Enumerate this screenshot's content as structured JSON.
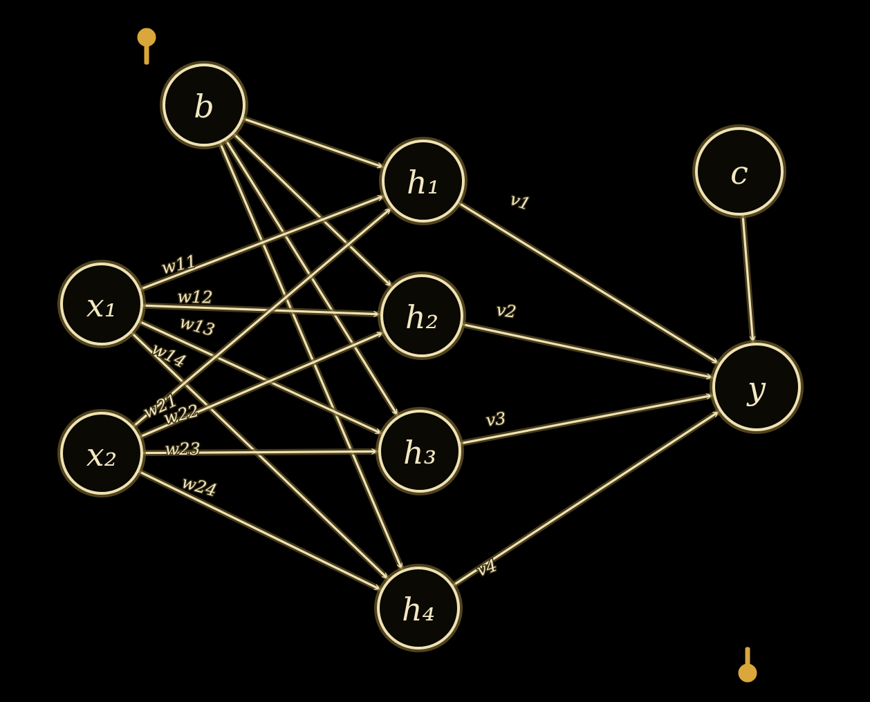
{
  "colors": {
    "background": "#000000",
    "ink": "#efe3b4",
    "halo": "#6b5a2a",
    "handle": "#d9a73a"
  },
  "nodes": [
    {
      "id": "b",
      "label": "b"
    },
    {
      "id": "x1",
      "label": "x₁"
    },
    {
      "id": "x2",
      "label": "x₂"
    },
    {
      "id": "h1",
      "label": "h₁"
    },
    {
      "id": "h2",
      "label": "h₂"
    },
    {
      "id": "h3",
      "label": "h₃"
    },
    {
      "id": "h4",
      "label": "h₄"
    },
    {
      "id": "c",
      "label": "c"
    },
    {
      "id": "y",
      "label": "y"
    }
  ],
  "edges": [
    {
      "from": "b",
      "to": "h1",
      "label": ""
    },
    {
      "from": "b",
      "to": "h2",
      "label": ""
    },
    {
      "from": "b",
      "to": "h3",
      "label": ""
    },
    {
      "from": "b",
      "to": "h4",
      "label": ""
    },
    {
      "from": "x1",
      "to": "h1",
      "label": "w11"
    },
    {
      "from": "x1",
      "to": "h2",
      "label": "w12"
    },
    {
      "from": "x1",
      "to": "h3",
      "label": "w13"
    },
    {
      "from": "x1",
      "to": "h4",
      "label": "w14"
    },
    {
      "from": "x2",
      "to": "h1",
      "label": "w21"
    },
    {
      "from": "x2",
      "to": "h2",
      "label": "w22"
    },
    {
      "from": "x2",
      "to": "h3",
      "label": "w23"
    },
    {
      "from": "x2",
      "to": "h4",
      "label": "w24"
    },
    {
      "from": "h1",
      "to": "y",
      "label": "v1"
    },
    {
      "from": "h2",
      "to": "y",
      "label": "v2"
    },
    {
      "from": "h3",
      "to": "y",
      "label": "v3"
    },
    {
      "from": "h4",
      "to": "y",
      "label": "v4"
    },
    {
      "from": "c",
      "to": "y",
      "label": ""
    }
  ],
  "handles": [
    "crop-handle-top",
    "crop-handle-bottom"
  ]
}
